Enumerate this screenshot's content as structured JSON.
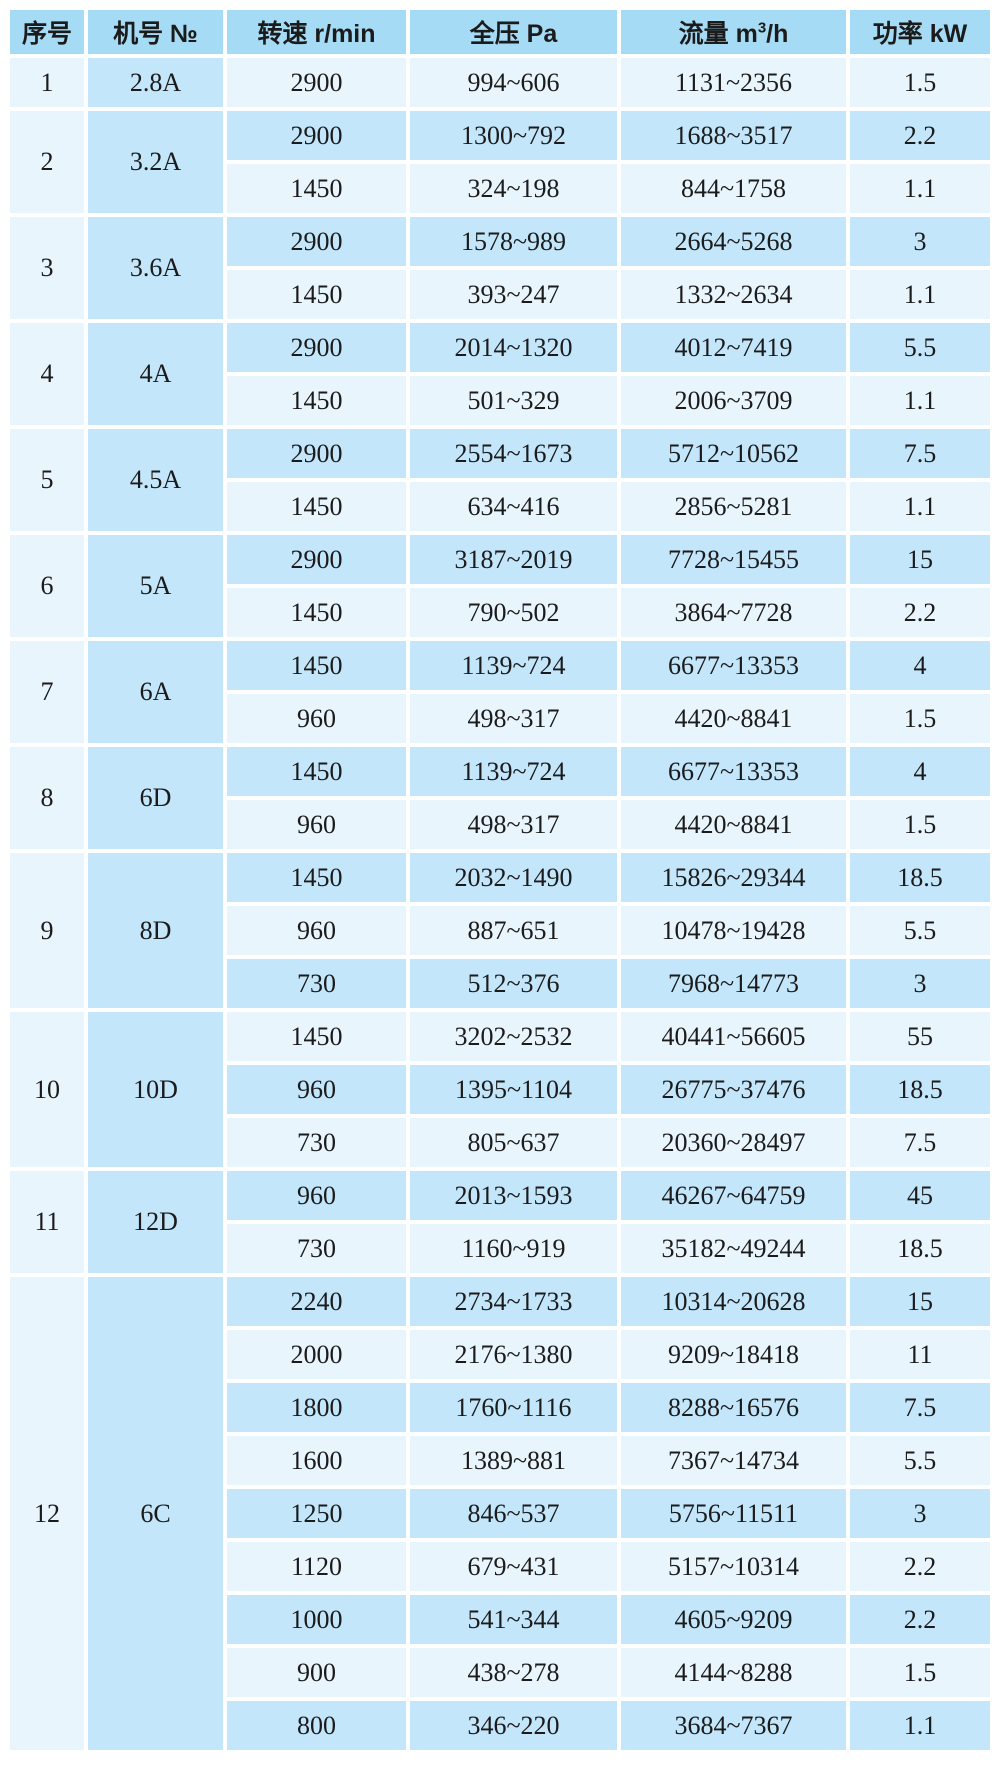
{
  "colors": {
    "header_bg": "#a6dbf5",
    "model_col_bg": "#c3e6fa",
    "row_medium_bg": "#c3e6fa",
    "row_pale_bg": "#e9f5fd",
    "grid_line": "#ffffff",
    "text": "#1b1b1b"
  },
  "table": {
    "headers": [
      {
        "text": "序号"
      },
      {
        "text": "机号 №"
      },
      {
        "text": "转速 r/min"
      },
      {
        "text": "全压 Pa"
      },
      {
        "pre": "流量 m",
        "sup": "3",
        "post": "/h"
      },
      {
        "text": "功率 kW"
      }
    ],
    "groups": [
      {
        "seq": "1",
        "model": "2.8A",
        "rows": [
          [
            "2900",
            "994~606",
            "1131~2356",
            "1.5"
          ]
        ]
      },
      {
        "seq": "2",
        "model": "3.2A",
        "rows": [
          [
            "2900",
            "1300~792",
            "1688~3517",
            "2.2"
          ],
          [
            "1450",
            "324~198",
            "844~1758",
            "1.1"
          ]
        ]
      },
      {
        "seq": "3",
        "model": "3.6A",
        "rows": [
          [
            "2900",
            "1578~989",
            "2664~5268",
            "3"
          ],
          [
            "1450",
            "393~247",
            "1332~2634",
            "1.1"
          ]
        ]
      },
      {
        "seq": "4",
        "model": "4A",
        "rows": [
          [
            "2900",
            "2014~1320",
            "4012~7419",
            "5.5"
          ],
          [
            "1450",
            "501~329",
            "2006~3709",
            "1.1"
          ]
        ]
      },
      {
        "seq": "5",
        "model": "4.5A",
        "rows": [
          [
            "2900",
            "2554~1673",
            "5712~10562",
            "7.5"
          ],
          [
            "1450",
            "634~416",
            "2856~5281",
            "1.1"
          ]
        ]
      },
      {
        "seq": "6",
        "model": "5A",
        "rows": [
          [
            "2900",
            "3187~2019",
            "7728~15455",
            "15"
          ],
          [
            "1450",
            "790~502",
            "3864~7728",
            "2.2"
          ]
        ]
      },
      {
        "seq": "7",
        "model": "6A",
        "rows": [
          [
            "1450",
            "1139~724",
            "6677~13353",
            "4"
          ],
          [
            "960",
            "498~317",
            "4420~8841",
            "1.5"
          ]
        ]
      },
      {
        "seq": "8",
        "model": "6D",
        "rows": [
          [
            "1450",
            "1139~724",
            "6677~13353",
            "4"
          ],
          [
            "960",
            "498~317",
            "4420~8841",
            "1.5"
          ]
        ]
      },
      {
        "seq": "9",
        "model": "8D",
        "rows": [
          [
            "1450",
            "2032~1490",
            "15826~29344",
            "18.5"
          ],
          [
            "960",
            "887~651",
            "10478~19428",
            "5.5"
          ],
          [
            "730",
            "512~376",
            "7968~14773",
            "3"
          ]
        ]
      },
      {
        "seq": "10",
        "model": "10D",
        "rows": [
          [
            "1450",
            "3202~2532",
            "40441~56605",
            "55"
          ],
          [
            "960",
            "1395~1104",
            "26775~37476",
            "18.5"
          ],
          [
            "730",
            "805~637",
            "20360~28497",
            "7.5"
          ]
        ]
      },
      {
        "seq": "11",
        "model": "12D",
        "rows": [
          [
            "960",
            "2013~1593",
            "46267~64759",
            "45"
          ],
          [
            "730",
            "1160~919",
            "35182~49244",
            "18.5"
          ]
        ]
      },
      {
        "seq": "12",
        "model": "6C",
        "rows": [
          [
            "2240",
            "2734~1733",
            "10314~20628",
            "15"
          ],
          [
            "2000",
            "2176~1380",
            "9209~18418",
            "11"
          ],
          [
            "1800",
            "1760~1116",
            "8288~16576",
            "7.5"
          ],
          [
            "1600",
            "1389~881",
            "7367~14734",
            "5.5"
          ],
          [
            "1250",
            "846~537",
            "5756~11511",
            "3"
          ],
          [
            "1120",
            "679~431",
            "5157~10314",
            "2.2"
          ],
          [
            "1000",
            "541~344",
            "4605~9209",
            "2.2"
          ],
          [
            "900",
            "438~278",
            "4144~8288",
            "1.5"
          ],
          [
            "800",
            "346~220",
            "3684~7367",
            "1.1"
          ]
        ]
      }
    ]
  }
}
